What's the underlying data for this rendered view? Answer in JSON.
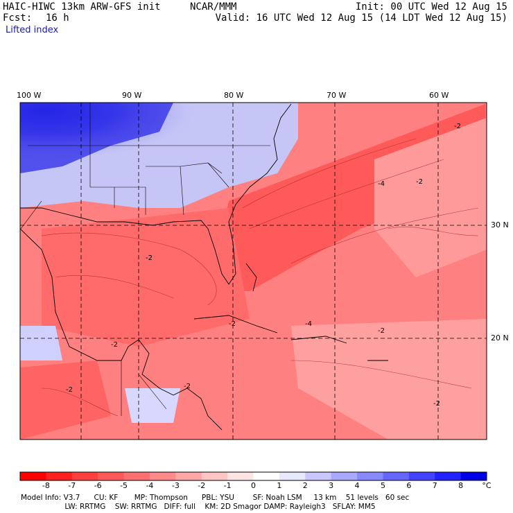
{
  "header": {
    "model_line": "HAIC-HIWC 13km ARW-GFS init",
    "org": "NCAR/MMM",
    "init": "Init: 00 UTC Wed 12 Aug 15",
    "fcst_label": "Fcst:",
    "fcst_value": "16 h",
    "valid": "Valid: 16 UTC Wed 12 Aug 15 (14 LDT Wed 12 Aug 15)",
    "field": "Lifted index"
  },
  "map": {
    "longitude_labels": [
      "100 W",
      "90 W",
      "80 W",
      "70 W",
      "60 W"
    ],
    "latitude_labels": [
      "30 N",
      "20 N"
    ],
    "contour_labels": [
      "-2",
      "-4",
      "-2",
      "-2",
      "-4",
      "-2",
      "-2",
      "-2",
      "-2",
      "-2",
      "-2"
    ]
  },
  "colorbar": {
    "labels": [
      "-8",
      "-7",
      "-6",
      "-5",
      "-4",
      "-3",
      "-2",
      "-1",
      "0",
      "1",
      "2",
      "3",
      "4",
      "5",
      "6",
      "7",
      "8"
    ],
    "unit": "°C",
    "colors": [
      "#ff0000",
      "#ff2020",
      "#ff4040",
      "#ff5a5a",
      "#ff7070",
      "#ff8a8a",
      "#ffa6a6",
      "#ffc4c4",
      "#ffe4e4",
      "#ffffff",
      "#e8e8ff",
      "#c8c8ff",
      "#a8a8ff",
      "#8888ff",
      "#6666ff",
      "#4444ff",
      "#2222ff",
      "#0000e8"
    ]
  },
  "model_info": {
    "line1": "Model Info: V3.7      CU: KF       MP: Thompson      PBL: YSU        SF: Noah LSM     13 km    51 levels   60 sec",
    "line2": "                   LW: RRTMG    SW: RRTMG   DIFF: full    KM: 2D Smagor DAMP: Rayleigh3   SFLAY: MM5"
  }
}
